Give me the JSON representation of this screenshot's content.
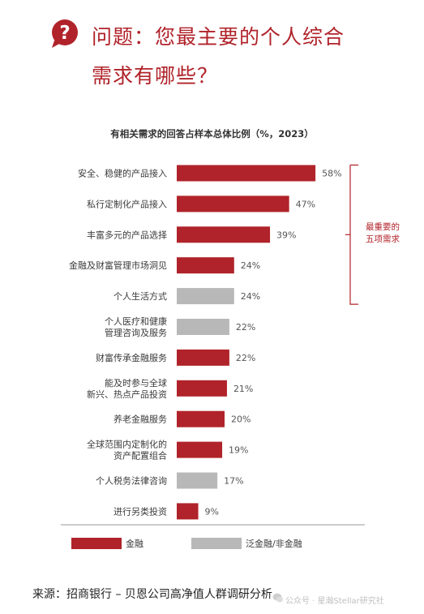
{
  "header": {
    "line1": "问题：您最主要的个人综合",
    "line2": "需求有哪些？",
    "icon": "question-bubble-icon"
  },
  "chart_data": {
    "type": "bar",
    "orientation": "horizontal",
    "title": "有相关需求的回答占样本总体比例（%，2023）",
    "categories": [
      [
        "安全、稳健的产品接入"
      ],
      [
        "私行定制化产品接入"
      ],
      [
        "丰富多元的产品选择"
      ],
      [
        "金融及财富管理市场洞见"
      ],
      [
        "个人生活方式"
      ],
      [
        "个人医疗和健康",
        "管理咨询及服务"
      ],
      [
        "财富传承金融服务"
      ],
      [
        "能及时参与全球",
        "新兴、热点产品投资"
      ],
      [
        "养老金融服务"
      ],
      [
        "全球范围内定制化的",
        "资产配置组合"
      ],
      [
        "个人税务法律咨询"
      ],
      [
        "进行另类投资"
      ]
    ],
    "values": [
      58,
      47,
      39,
      24,
      24,
      22,
      22,
      21,
      20,
      19,
      17,
      9
    ],
    "value_labels": [
      "58%",
      "47%",
      "39%",
      "24%",
      "24%",
      "22%",
      "22%",
      "21%",
      "20%",
      "19%",
      "17%",
      "9%"
    ],
    "groups": [
      "金融",
      "金融",
      "金融",
      "金融",
      "泛金融/非金融",
      "泛金融/非金融",
      "金融",
      "金融",
      "金融",
      "金融",
      "泛金融/非金融",
      "金融"
    ],
    "bracket": {
      "lines": [
        "最重要的",
        "五项需求"
      ],
      "covers_first_n": 5
    },
    "legend": [
      {
        "name": "金融",
        "color": "#b0232a"
      },
      {
        "name": "泛金融/非金融",
        "color": "#b8b8b8"
      }
    ],
    "legend_position": "bottom",
    "colors": {
      "finance": "#b0232a",
      "non_finance": "#b8b8b8",
      "accent": "#b0232a"
    }
  },
  "footer": {
    "source": "来源：招商银行 – 贝恩公司高净值人群调研分析",
    "watermark": "公众号 · 星瀚Stellar研究社"
  }
}
